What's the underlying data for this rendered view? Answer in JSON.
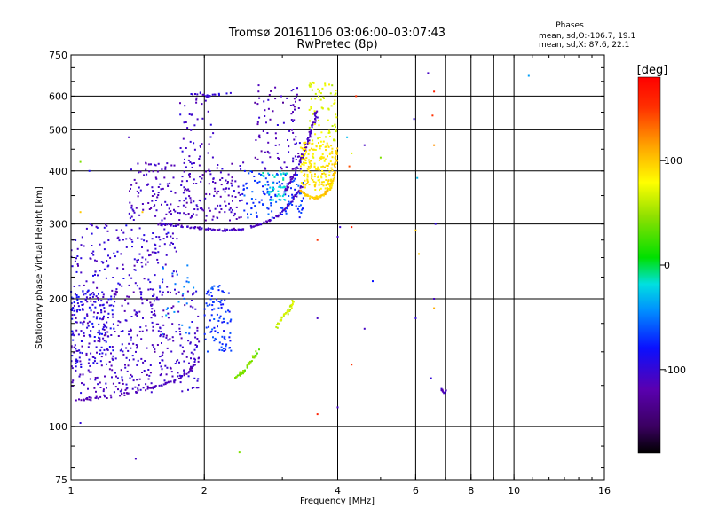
{
  "chart_data": {
    "type": "scatter",
    "title": "Tromsø 20161106 03:06:00–03:07:43",
    "subtitle": "RwPretec (8p)",
    "xlabel": "Frequency [MHz]",
    "ylabel": "Stationary phase Virtual Height [km]",
    "x_scale": "log",
    "y_scale": "log",
    "xlim": [
      1,
      16
    ],
    "ylim": [
      75,
      750
    ],
    "x_ticks": [
      1,
      2,
      4,
      6,
      8,
      10,
      16
    ],
    "x_tick_labels": [
      "1",
      "2",
      "4",
      "6",
      "8",
      "10",
      "16"
    ],
    "x_gridlines": [
      2,
      4,
      6,
      7,
      8,
      9,
      10
    ],
    "y_ticks": [
      75,
      100,
      200,
      300,
      400,
      500,
      600,
      750
    ],
    "y_tick_labels": [
      "75",
      "100",
      "200",
      "300",
      "400",
      "500",
      "600",
      "750"
    ],
    "grid": true,
    "phases_box": {
      "title": "Phases",
      "line_o": "mean, sd,O:-106.7, 19.1",
      "line_x": "mean, sd,X:  87.6, 22.1"
    },
    "colorbar": {
      "label": "[deg]",
      "range": [
        -180,
        180
      ],
      "ticks": [
        100,
        0,
        -100
      ],
      "tick_labels": [
        "100",
        "0",
        "-100"
      ],
      "colormap": "rainbow (black→purple→blue→cyan→green→yellow→orange→red)"
    },
    "traces": [
      {
        "shape": "curve",
        "x": [
          1.0,
          1.15,
          1.3,
          1.5,
          1.7,
          1.85,
          1.95
        ],
        "y": [
          115,
          117,
          119,
          123,
          128,
          135,
          145
        ],
        "phase": -115,
        "n": 90,
        "spread": 0.012
      },
      {
        "shape": "band",
        "xr": [
          1.0,
          1.95
        ],
        "yr": [
          120,
          210
        ],
        "phase": -108,
        "n": 420
      },
      {
        "shape": "band",
        "xr": [
          1.0,
          1.75
        ],
        "yr": [
          210,
          300
        ],
        "phase": -104,
        "n": 170
      },
      {
        "shape": "band",
        "xr": [
          1.0,
          1.25
        ],
        "yr": [
          140,
          210
        ],
        "phase": -90,
        "n": 120
      },
      {
        "shape": "band",
        "xr": [
          2.0,
          2.3
        ],
        "yr": [
          150,
          215
        ],
        "phase": -72,
        "n": 90
      },
      {
        "shape": "band",
        "xr": [
          1.55,
          1.9
        ],
        "yr": [
          165,
          240
        ],
        "phase": -50,
        "n": 25
      },
      {
        "shape": "curve",
        "x": [
          1.6,
          1.8,
          2.0,
          2.2,
          2.45,
          2.7,
          2.95,
          3.15,
          3.35
        ],
        "y": [
          300,
          296,
          292,
          290,
          292,
          300,
          315,
          340,
          370
        ],
        "phase": -110,
        "n": 140,
        "spread": 0.01
      },
      {
        "shape": "band",
        "xr": [
          1.35,
          2.45
        ],
        "yr": [
          305,
          420
        ],
        "phase": -110,
        "n": 240
      },
      {
        "shape": "band",
        "xr": [
          1.75,
          2.1
        ],
        "yr": [
          420,
          600
        ],
        "phase": -108,
        "n": 40
      },
      {
        "shape": "band",
        "xr": [
          2.45,
          3.35
        ],
        "yr": [
          310,
          400
        ],
        "phase": -70,
        "n": 120
      },
      {
        "shape": "band",
        "xr": [
          2.7,
          3.1
        ],
        "yr": [
          340,
          400
        ],
        "phase": -20,
        "n": 45
      },
      {
        "shape": "curve",
        "x": [
          3.05,
          3.2,
          3.35,
          3.5,
          3.6
        ],
        "y": [
          360,
          395,
          440,
          500,
          560
        ],
        "phase": -112,
        "n": 90,
        "spread": 0.012
      },
      {
        "shape": "band",
        "xr": [
          2.6,
          3.3
        ],
        "yr": [
          400,
          640
        ],
        "phase": -112,
        "n": 100
      },
      {
        "shape": "curve",
        "x": [
          1.85,
          1.95,
          2.05,
          2.15,
          2.3
        ],
        "y": [
          605,
          610,
          600,
          605,
          610
        ],
        "phase": -105,
        "n": 22,
        "spread": 0.008
      },
      {
        "shape": "curve",
        "x": [
          3.3,
          3.4,
          3.55,
          3.7,
          3.85,
          3.95,
          3.98
        ],
        "y": [
          360,
          350,
          345,
          350,
          365,
          400,
          450
        ],
        "phase": 100,
        "n": 110,
        "spread": 0.01
      },
      {
        "shape": "band",
        "xr": [
          3.3,
          3.9
        ],
        "yr": [
          360,
          470
        ],
        "phase": 90,
        "n": 170
      },
      {
        "shape": "band",
        "xr": [
          3.45,
          3.98
        ],
        "yr": [
          470,
          650
        ],
        "phase": 70,
        "n": 70
      },
      {
        "shape": "curve",
        "x": [
          2.35,
          2.45,
          2.55,
          2.65
        ],
        "y": [
          130,
          135,
          142,
          152
        ],
        "phase": 40,
        "n": 50,
        "spread": 0.014
      },
      {
        "shape": "curve",
        "x": [
          2.9,
          3.0,
          3.1,
          3.2
        ],
        "y": [
          170,
          180,
          188,
          198
        ],
        "phase": 65,
        "n": 35,
        "spread": 0.016
      },
      {
        "shape": "curve",
        "x": [
          6.85,
          6.95,
          7.05
        ],
        "y": [
          123,
          120,
          122
        ],
        "phase": -115,
        "n": 10,
        "spread": 0.004
      }
    ],
    "isolated_points": [
      {
        "x": 1.05,
        "y": 102,
        "phase": -100
      },
      {
        "x": 1.4,
        "y": 84,
        "phase": -110
      },
      {
        "x": 2.4,
        "y": 87,
        "phase": 40
      },
      {
        "x": 4.0,
        "y": 111,
        "phase": -110
      },
      {
        "x": 3.6,
        "y": 107,
        "phase": 160
      },
      {
        "x": 4.8,
        "y": 220,
        "phase": -80
      },
      {
        "x": 4.3,
        "y": 140,
        "phase": 150
      },
      {
        "x": 6.0,
        "y": 180,
        "phase": -100
      },
      {
        "x": 6.6,
        "y": 200,
        "phase": -110
      },
      {
        "x": 6.6,
        "y": 190,
        "phase": 110
      },
      {
        "x": 6.5,
        "y": 130,
        "phase": -100
      },
      {
        "x": 6.65,
        "y": 300,
        "phase": -100
      },
      {
        "x": 6.0,
        "y": 290,
        "phase": 100
      },
      {
        "x": 6.05,
        "y": 385,
        "phase": -30
      },
      {
        "x": 5.95,
        "y": 530,
        "phase": -100
      },
      {
        "x": 6.4,
        "y": 680,
        "phase": -110
      },
      {
        "x": 6.55,
        "y": 540,
        "phase": 150
      },
      {
        "x": 6.6,
        "y": 615,
        "phase": 160
      },
      {
        "x": 10.8,
        "y": 670,
        "phase": -40
      },
      {
        "x": 3.6,
        "y": 275,
        "phase": 150
      },
      {
        "x": 4.0,
        "y": 280,
        "phase": -110
      },
      {
        "x": 4.05,
        "y": 295,
        "phase": -105
      },
      {
        "x": 4.3,
        "y": 295,
        "phase": 160
      },
      {
        "x": 4.25,
        "y": 410,
        "phase": 140
      },
      {
        "x": 4.3,
        "y": 440,
        "phase": 70
      },
      {
        "x": 4.6,
        "y": 460,
        "phase": -110
      },
      {
        "x": 4.4,
        "y": 600,
        "phase": 150
      },
      {
        "x": 5.0,
        "y": 430,
        "phase": 40
      },
      {
        "x": 3.6,
        "y": 180,
        "phase": -110
      },
      {
        "x": 4.6,
        "y": 170,
        "phase": -110
      },
      {
        "x": 4.2,
        "y": 480,
        "phase": -30
      },
      {
        "x": 1.35,
        "y": 480,
        "phase": -110
      },
      {
        "x": 1.45,
        "y": 320,
        "phase": 100
      },
      {
        "x": 1.05,
        "y": 420,
        "phase": 40
      },
      {
        "x": 1.1,
        "y": 400,
        "phase": -90
      },
      {
        "x": 1.05,
        "y": 320,
        "phase": 100
      },
      {
        "x": 6.6,
        "y": 460,
        "phase": 120
      },
      {
        "x": 6.1,
        "y": 255,
        "phase": 100
      }
    ]
  }
}
